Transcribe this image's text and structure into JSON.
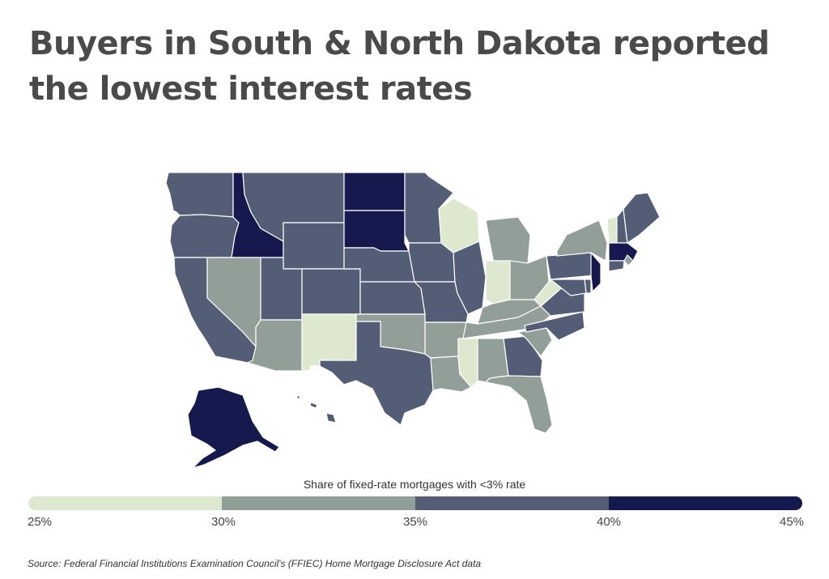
{
  "title": "Buyers in South & North Dakota reported the lowest interest rates",
  "legend": {
    "title": "Share of fixed-rate mortgages with <3% rate",
    "bins": [
      {
        "min": 25,
        "max": 30,
        "color": "#dde8cf"
      },
      {
        "min": 30,
        "max": 35,
        "color": "#929e98"
      },
      {
        "min": 35,
        "max": 40,
        "color": "#535d75"
      },
      {
        "min": 40,
        "max": 45,
        "color": "#16194d"
      }
    ],
    "ticks": [
      "25%",
      "30%",
      "35%",
      "40%",
      "45%"
    ]
  },
  "map_data": {
    "metric": "Share of fixed-rate mortgages with <3% rate",
    "states": {
      "WA": "35-40%",
      "OR": "35-40%",
      "CA": "35-40%",
      "ID": "40-45%",
      "NV": "30-35%",
      "MT": "35-40%",
      "WY": "35-40%",
      "UT": "35-40%",
      "AZ": "30-35%",
      "CO": "35-40%",
      "NM": "25-30%",
      "ND": "40-45%",
      "SD": "40-45%",
      "NE": "35-40%",
      "KS": "35-40%",
      "OK": "30-35%",
      "TX": "35-40%",
      "MN": "35-40%",
      "IA": "35-40%",
      "MO": "35-40%",
      "AR": "30-35%",
      "LA": "30-35%",
      "WI": "25-30%",
      "IL": "35-40%",
      "MI": "30-35%",
      "IN": "25-30%",
      "OH": "30-35%",
      "KY": "30-35%",
      "TN": "30-35%",
      "MS": "25-30%",
      "AL": "30-35%",
      "GA": "35-40%",
      "FL": "30-35%",
      "SC": "30-35%",
      "NC": "35-40%",
      "VA": "35-40%",
      "WV": "25-30%",
      "PA": "35-40%",
      "NY": "30-35%",
      "VT": "25-30%",
      "NH": "35-40%",
      "ME": "35-40%",
      "MA": "40-45%",
      "RI": "30-35%",
      "CT": "35-40%",
      "NJ": "40-45%",
      "DE": "35-40%",
      "MD": "35-40%",
      "AK": "40-45%",
      "HI": "35-40%"
    }
  },
  "source": "Source:  Federal Financial Institutions Examination Council's (FFIEC) Home Mortgage Disclosure Act data"
}
